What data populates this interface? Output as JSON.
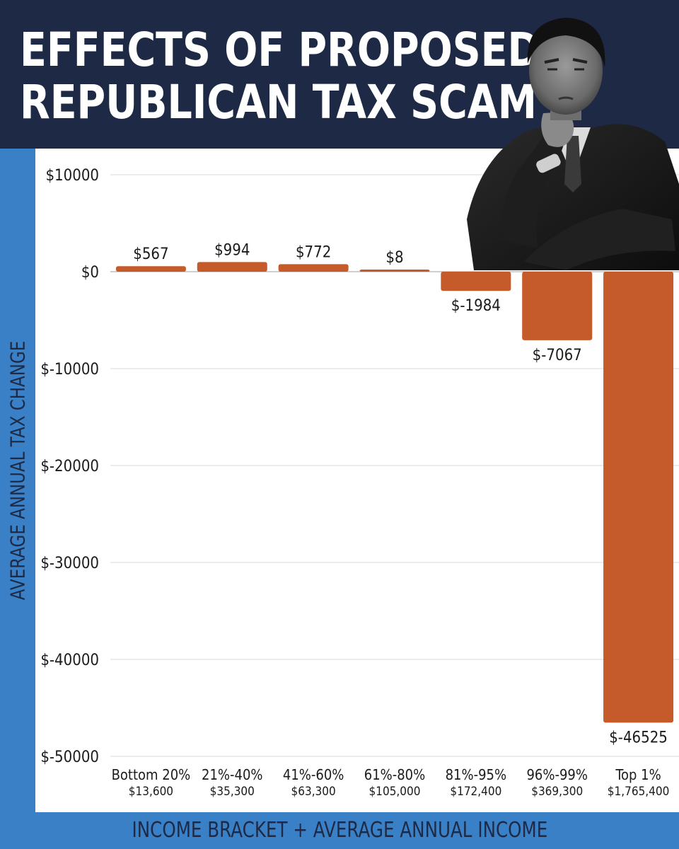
{
  "title": {
    "line1": "EFFECTS OF PROPOSED",
    "line2": "REPUBLICAN TAX SCAM"
  },
  "colors": {
    "header": "#1e2a45",
    "band": "#3a80c6",
    "bar": "#c55a2b",
    "grid": "#d9d9d9"
  },
  "chart_data": {
    "type": "bar",
    "categories": [
      "Bottom 20%",
      "21%-40%",
      "41%-60%",
      "61%-80%",
      "81%-95%",
      "96%-99%",
      "Top 1%"
    ],
    "subcategories": [
      "$13,600",
      "$35,300",
      "$63,300",
      "$105,000",
      "$172,400",
      "$369,300",
      "$1,765,400"
    ],
    "values": [
      567,
      994,
      772,
      8,
      -1984,
      -7067,
      -46525
    ],
    "value_labels": [
      "$567",
      "$994",
      "$772",
      "$8",
      "$-1984",
      "$-7067",
      "$-46525"
    ],
    "xlabel": "INCOME BRACKET + AVERAGE ANNUAL INCOME",
    "ylabel": "AVERAGE ANNUAL TAX CHANGE",
    "ylim": [
      -50000,
      10000
    ],
    "yticks": [
      10000,
      0,
      -10000,
      -20000,
      -30000,
      -40000,
      -50000
    ],
    "ytick_labels": [
      "$10000",
      "$0",
      "$-10000",
      "$-20000",
      "$-30000",
      "$-40000",
      "$-50000"
    ],
    "grid": true,
    "legend": "none"
  },
  "photo": {
    "subject": "photo of a man in a dark suit with hand on chin",
    "icon": "person-photo"
  }
}
